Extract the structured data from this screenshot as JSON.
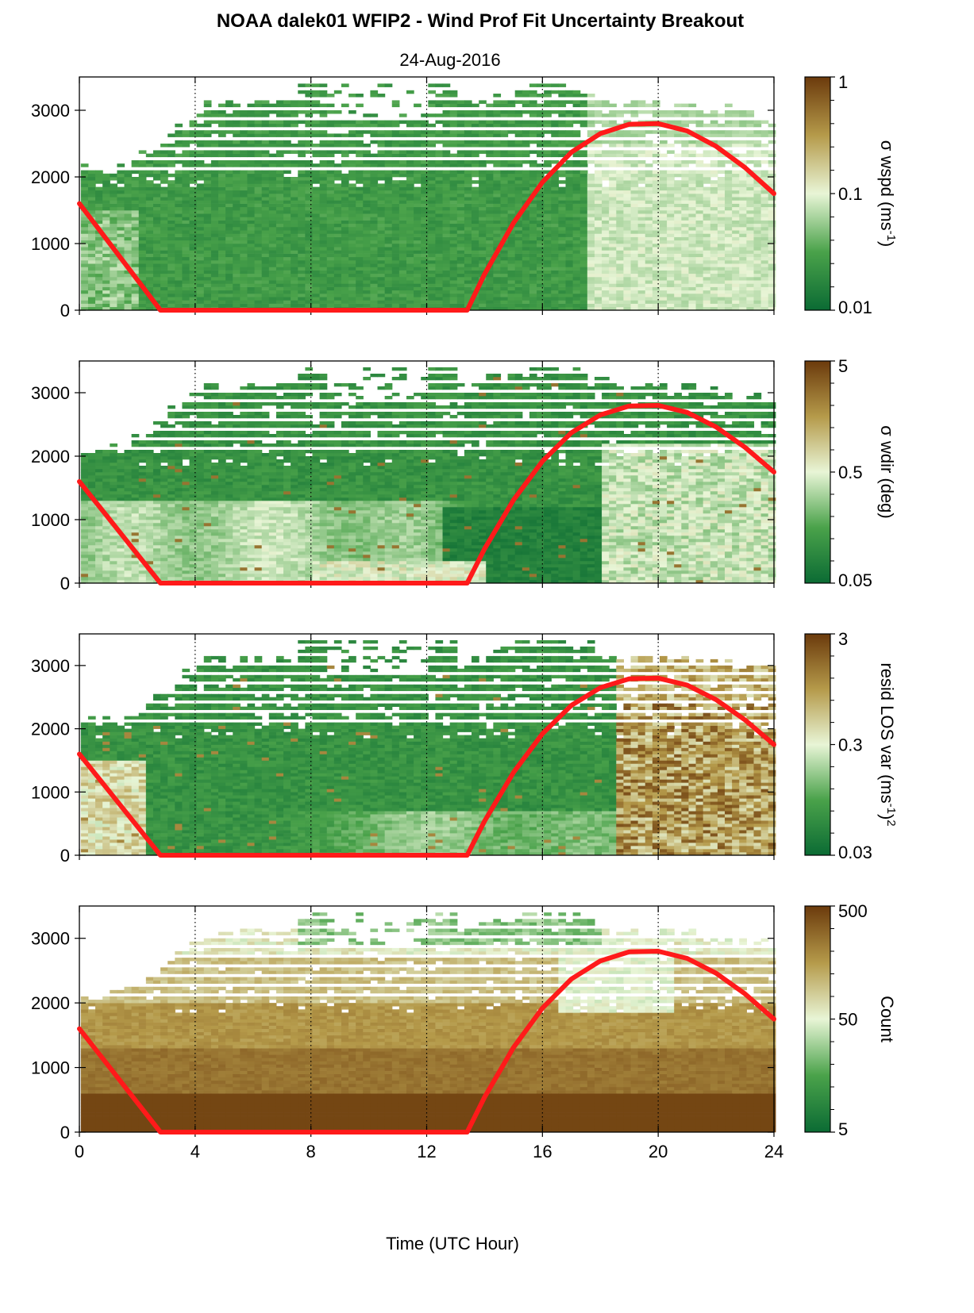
{
  "title": "NOAA dalek01 WFIP2 - Wind Prof Fit Uncertainty Breakout",
  "subtitle": "24-Aug-2016",
  "colors": {
    "low": "#0b6b34",
    "mid": "#e8f5d6",
    "high": "#6b3a0c",
    "curve": "#ff1a1a",
    "axis": "#000000"
  },
  "chart_data": [
    {
      "type": "heatmap",
      "title": "NOAA dalek01 WFIP2 - Wind Prof Fit Uncertainty Breakout",
      "subtitle": "24-Aug-2016",
      "xlabel": "",
      "ylabel": "",
      "xlim": [
        0,
        24
      ],
      "ylim": [
        0,
        3500
      ],
      "xticks": [
        "0",
        "4",
        "8",
        "12",
        "16",
        "20",
        "24"
      ],
      "yticks": [
        "0",
        "1000",
        "2000",
        "3000"
      ],
      "grid_x": [
        4,
        8,
        12,
        16,
        20
      ],
      "colorbar": {
        "label": "σ wspd (ms",
        "label_exponent": "-1",
        "label_suffix": ")",
        "scale": "log",
        "ticks": [
          "0.01",
          "0.1",
          "1"
        ]
      },
      "pattern": "wspd",
      "series": [
        {
          "type": "line",
          "color": "#ff1a1a",
          "x": [
            0,
            2.8,
            13.4,
            14,
            15,
            16,
            17,
            18,
            19,
            20,
            21,
            22,
            23,
            24
          ],
          "y": [
            1600,
            0,
            0,
            540,
            1310,
            1920,
            2370,
            2650,
            2790,
            2800,
            2690,
            2460,
            2140,
            1750
          ]
        }
      ]
    },
    {
      "type": "heatmap",
      "xlabel": "",
      "ylabel": "",
      "xlim": [
        0,
        24
      ],
      "ylim": [
        0,
        3500
      ],
      "xticks": [
        "0",
        "4",
        "8",
        "12",
        "16",
        "20",
        "24"
      ],
      "yticks": [
        "0",
        "1000",
        "2000",
        "3000"
      ],
      "grid_x": [
        4,
        8,
        12,
        16,
        20
      ],
      "colorbar": {
        "label": "σ wdir (deg)",
        "label_exponent": "",
        "label_suffix": "",
        "scale": "log",
        "ticks": [
          "0.05",
          "0.5",
          "5"
        ]
      },
      "pattern": "wdir",
      "series": [
        {
          "type": "line",
          "color": "#ff1a1a",
          "x": [
            0,
            2.8,
            13.4,
            14,
            15,
            16,
            17,
            18,
            19,
            20,
            21,
            22,
            23,
            24
          ],
          "y": [
            1600,
            0,
            0,
            540,
            1310,
            1920,
            2370,
            2650,
            2790,
            2800,
            2690,
            2460,
            2140,
            1750
          ]
        }
      ]
    },
    {
      "type": "heatmap",
      "xlabel": "",
      "ylabel": "",
      "xlim": [
        0,
        24
      ],
      "ylim": [
        0,
        3500
      ],
      "xticks": [
        "0",
        "4",
        "8",
        "12",
        "16",
        "20",
        "24"
      ],
      "yticks": [
        "0",
        "1000",
        "2000",
        "3000"
      ],
      "grid_x": [
        4,
        8,
        12,
        16,
        20
      ],
      "colorbar": {
        "label": "resid LOS var (ms",
        "label_exponent": "-1",
        "label_suffix": ")",
        "label_exponent2": "2",
        "scale": "log",
        "ticks": [
          "0.03",
          "0.3",
          "3"
        ]
      },
      "pattern": "resid",
      "series": [
        {
          "type": "line",
          "color": "#ff1a1a",
          "x": [
            0,
            2.8,
            13.4,
            14,
            15,
            16,
            17,
            18,
            19,
            20,
            21,
            22,
            23,
            24
          ],
          "y": [
            1600,
            0,
            0,
            540,
            1310,
            1920,
            2370,
            2650,
            2790,
            2800,
            2690,
            2460,
            2140,
            1750
          ]
        }
      ]
    },
    {
      "type": "heatmap",
      "xlabel": "Time (UTC Hour)",
      "ylabel": "",
      "xlim": [
        0,
        24
      ],
      "ylim": [
        0,
        3500
      ],
      "xticks": [
        "0",
        "4",
        "8",
        "12",
        "16",
        "20",
        "24"
      ],
      "yticks": [
        "0",
        "1000",
        "2000",
        "3000"
      ],
      "grid_x": [
        4,
        8,
        12,
        16,
        20
      ],
      "colorbar": {
        "label": "Count",
        "label_exponent": "",
        "label_suffix": "",
        "scale": "log",
        "ticks": [
          "5",
          "50",
          "500"
        ]
      },
      "pattern": "count",
      "series": [
        {
          "type": "line",
          "color": "#ff1a1a",
          "x": [
            0,
            2.8,
            13.4,
            14,
            15,
            16,
            17,
            18,
            19,
            20,
            21,
            22,
            23,
            24
          ],
          "y": [
            1600,
            0,
            0,
            540,
            1310,
            1920,
            2370,
            2650,
            2790,
            2800,
            2690,
            2460,
            2140,
            1750
          ]
        }
      ]
    }
  ]
}
